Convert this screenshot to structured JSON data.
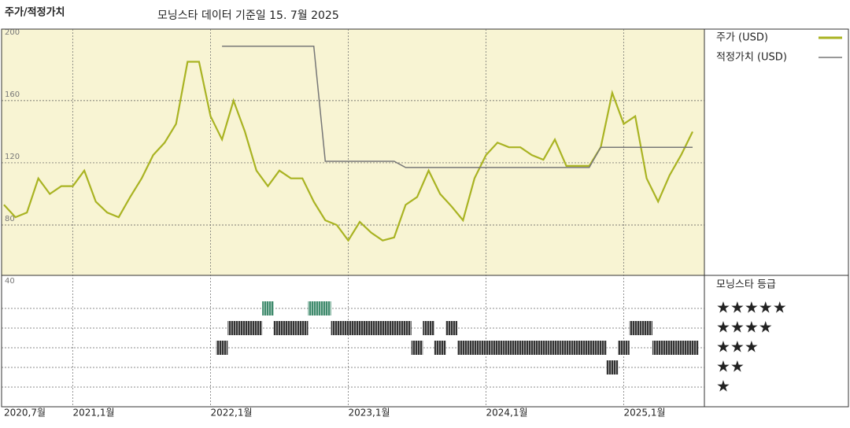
{
  "chart_data": {
    "type": "line",
    "title": "주가/적정가치",
    "subtitle": "모닝스타 데이터 기준일 15. 7월 2025",
    "x": [
      "2020-07",
      "2020-08",
      "2020-09",
      "2020-10",
      "2020-11",
      "2020-12",
      "2021-01",
      "2021-02",
      "2021-03",
      "2021-04",
      "2021-05",
      "2021-06",
      "2021-07",
      "2021-08",
      "2021-09",
      "2021-10",
      "2021-11",
      "2021-12",
      "2022-01",
      "2022-02",
      "2022-03",
      "2022-04",
      "2022-05",
      "2022-06",
      "2022-07",
      "2022-08",
      "2022-09",
      "2022-10",
      "2022-11",
      "2022-12",
      "2023-01",
      "2023-02",
      "2023-03",
      "2023-04",
      "2023-05",
      "2023-06",
      "2023-07",
      "2023-08",
      "2023-09",
      "2023-10",
      "2023-11",
      "2023-12",
      "2024-01",
      "2024-02",
      "2024-03",
      "2024-04",
      "2024-05",
      "2024-06",
      "2024-07",
      "2024-08",
      "2024-09",
      "2024-10",
      "2024-11",
      "2024-12",
      "2025-01",
      "2025-02",
      "2025-03",
      "2025-04",
      "2025-05",
      "2025-06",
      "2025-07"
    ],
    "series": [
      {
        "name": "주가 (USD)",
        "color": "#a9b322",
        "values": [
          93,
          85,
          88,
          110,
          100,
          105,
          105,
          115,
          95,
          88,
          85,
          98,
          110,
          125,
          133,
          145,
          185,
          185,
          150,
          135,
          160,
          140,
          115,
          105,
          115,
          110,
          110,
          95,
          83,
          80,
          70,
          82,
          75,
          70,
          72,
          93,
          98,
          115,
          100,
          92,
          83,
          110,
          125,
          133,
          130,
          130,
          125,
          122,
          135,
          118,
          118,
          118,
          130,
          165,
          145,
          150,
          110,
          95,
          112,
          125,
          140
        ]
      },
      {
        "name": "적정가치 (USD)",
        "color": "#777777",
        "values": [
          null,
          null,
          null,
          null,
          null,
          null,
          null,
          null,
          null,
          null,
          null,
          null,
          null,
          null,
          null,
          null,
          null,
          null,
          null,
          195,
          195,
          195,
          195,
          195,
          195,
          195,
          195,
          195,
          121,
          121,
          121,
          121,
          121,
          121,
          121,
          117,
          117,
          117,
          117,
          117,
          117,
          117,
          117,
          117,
          117,
          117,
          117,
          117,
          117,
          117,
          117,
          117,
          130,
          130,
          130,
          130,
          130,
          130,
          130,
          130,
          130
        ]
      }
    ],
    "ylim": [
      40,
      205
    ],
    "yticks": [
      40,
      80,
      120,
      160,
      200
    ],
    "xticks": [
      {
        "value": "2020-07",
        "label": "2020,7월"
      },
      {
        "value": "2021-01",
        "label": "2021,1월"
      },
      {
        "value": "2022-01",
        "label": "2022,1월"
      },
      {
        "value": "2023-01",
        "label": "2023,1월"
      },
      {
        "value": "2024-01",
        "label": "2024,1월"
      },
      {
        "value": "2025-01",
        "label": "2025,1월"
      }
    ],
    "rating": {
      "title": "모닝스타 등급",
      "labels": [
        "★★★★★",
        "★★★★",
        "★★★",
        "★★",
        "★"
      ],
      "levels": [
        5,
        4,
        3,
        2,
        1
      ],
      "colors": {
        "5": "#3f8a6c",
        "other": "#333333"
      },
      "values": [
        null,
        null,
        null,
        null,
        null,
        null,
        null,
        null,
        null,
        null,
        null,
        null,
        null,
        null,
        null,
        null,
        null,
        null,
        null,
        3,
        4,
        4,
        4,
        5,
        4,
        4,
        4,
        5,
        5,
        4,
        4,
        4,
        4,
        4,
        4,
        4,
        3,
        4,
        3,
        4,
        3,
        3,
        3,
        3,
        3,
        3,
        3,
        3,
        3,
        3,
        3,
        3,
        3,
        2,
        3,
        4,
        4,
        3,
        3,
        3,
        3
      ]
    },
    "grid": true
  }
}
